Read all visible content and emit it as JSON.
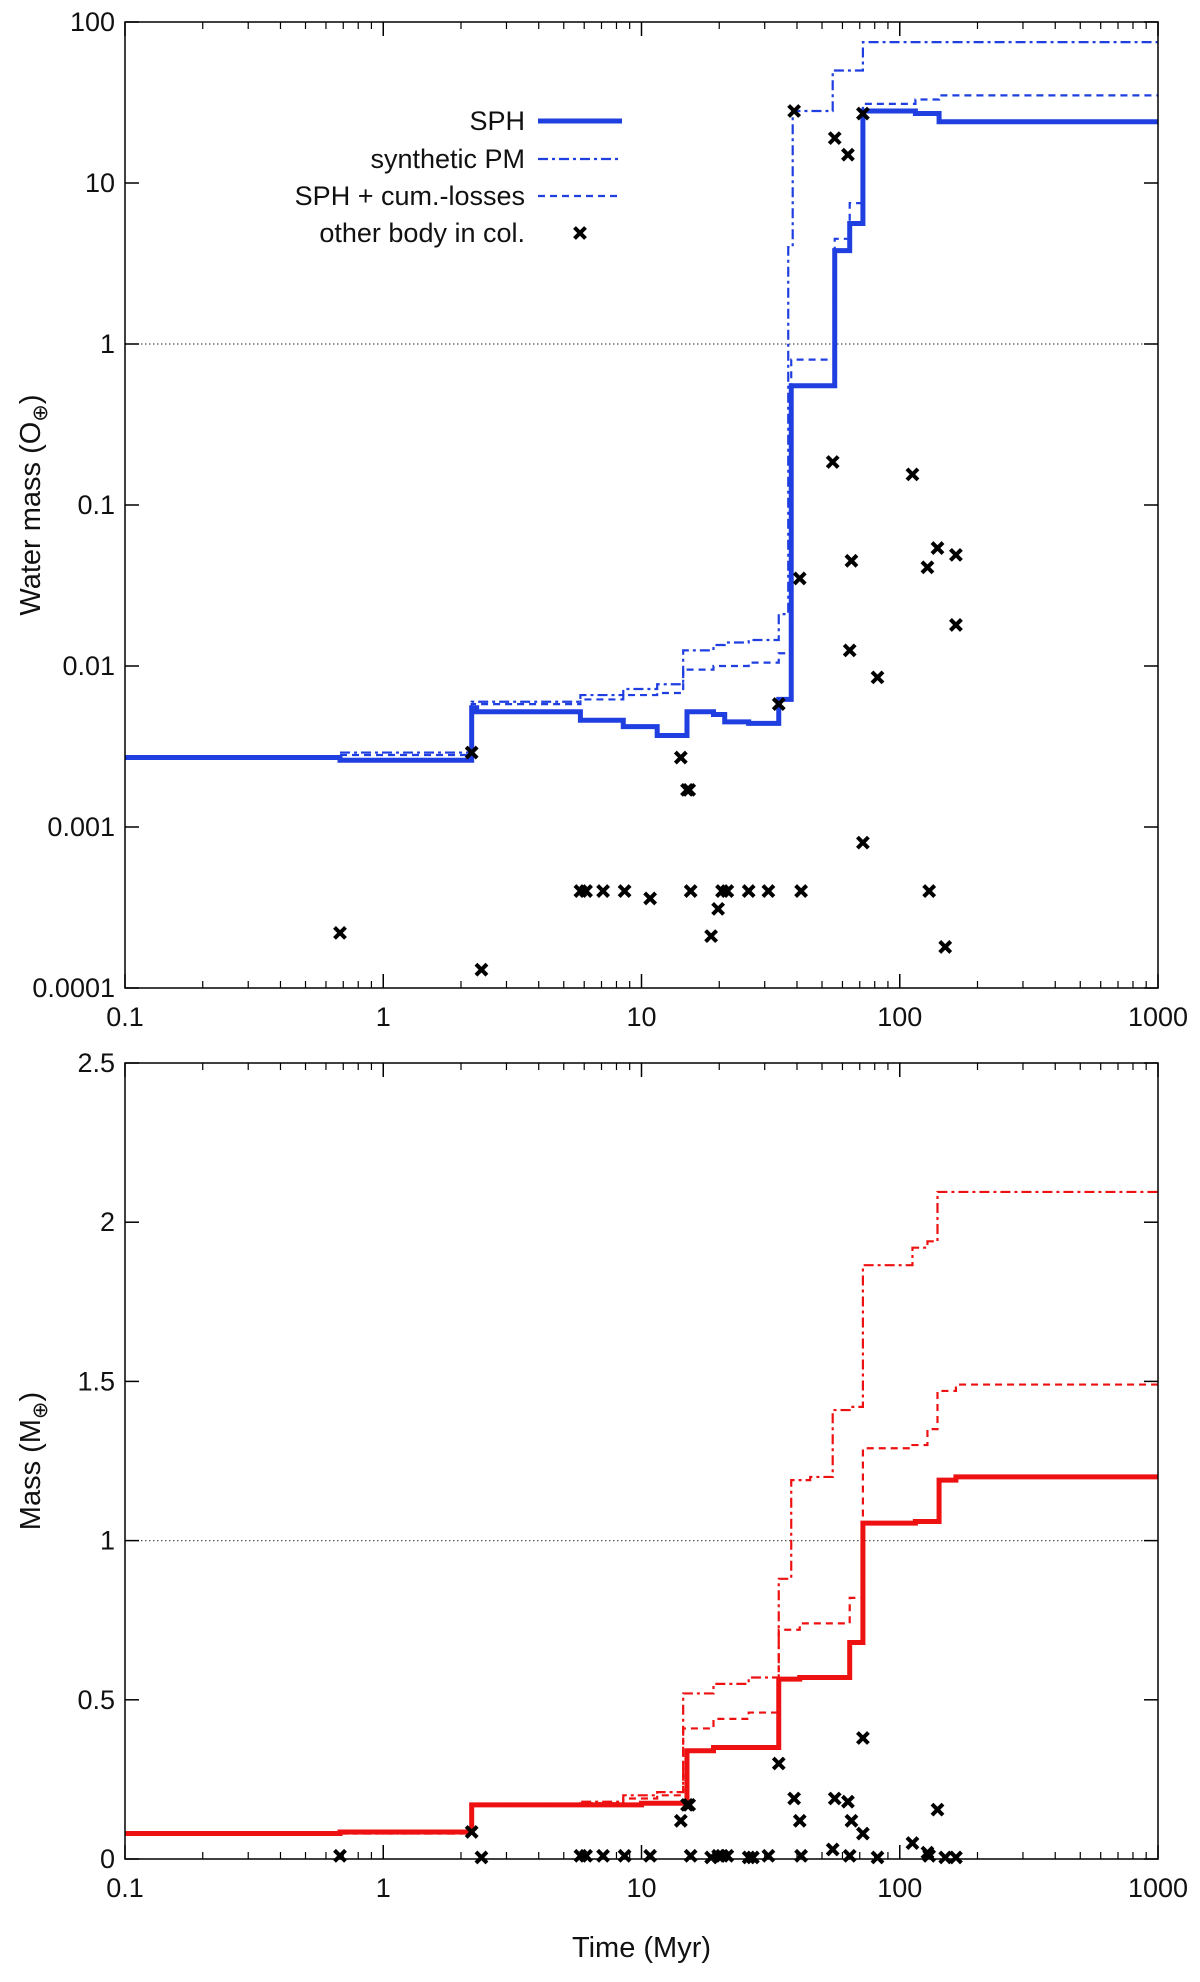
{
  "chart_data": [
    {
      "type": "line",
      "panel": "top",
      "ylabel": "Water mass (O",
      "ylabel_subscript": "⊕",
      "ylabel_close": ")",
      "xlabel": "",
      "x_scale": "log",
      "y_scale": "log",
      "xlim": [
        0.1,
        1000
      ],
      "ylim": [
        0.0001,
        100
      ],
      "xticks": [
        0.1,
        1,
        10,
        100,
        1000
      ],
      "xtick_labels": [
        "0.1",
        "1",
        "10",
        "100",
        "1000"
      ],
      "yticks": [
        0.0001,
        0.001,
        0.01,
        0.1,
        1,
        10,
        100
      ],
      "ytick_labels": [
        "0.0001",
        "0.001",
        "0.01",
        "0.1",
        "1",
        "10",
        "100"
      ],
      "reference_line": 1,
      "legend_position": "top-left",
      "colors": {
        "series": "#1f3fe0",
        "markers": "#000000",
        "reference": "#555555"
      },
      "legend": [
        "SPH",
        "synthetic PM",
        "SPH + cum.-losses",
        "other body in col."
      ],
      "series": [
        {
          "name": "SPH",
          "style": "solid-thick",
          "points": [
            [
              0.1,
              0.0027
            ],
            [
              0.68,
              0.0027
            ],
            [
              0.68,
              0.0026
            ],
            [
              2.2,
              0.0026
            ],
            [
              2.2,
              0.0055
            ],
            [
              2.3,
              0.0055
            ],
            [
              2.3,
              0.0052
            ],
            [
              5.8,
              0.0052
            ],
            [
              5.8,
              0.0046
            ],
            [
              8.5,
              0.0046
            ],
            [
              8.5,
              0.0042
            ],
            [
              11.5,
              0.0042
            ],
            [
              11.5,
              0.0037
            ],
            [
              15,
              0.0037
            ],
            [
              15,
              0.0052
            ],
            [
              19,
              0.0052
            ],
            [
              19,
              0.005
            ],
            [
              21,
              0.005
            ],
            [
              21,
              0.0045
            ],
            [
              26,
              0.0045
            ],
            [
              26,
              0.0044
            ],
            [
              34,
              0.0044
            ],
            [
              34,
              0.0062
            ],
            [
              38,
              0.0062
            ],
            [
              38,
              0.55
            ],
            [
              56,
              0.55
            ],
            [
              56,
              3.8
            ],
            [
              64,
              3.8
            ],
            [
              64,
              5.6
            ],
            [
              72,
              5.6
            ],
            [
              72,
              28
            ],
            [
              115,
              28
            ],
            [
              115,
              27
            ],
            [
              142,
              27
            ],
            [
              142,
              24
            ],
            [
              1000,
              24
            ]
          ]
        },
        {
          "name": "synthetic PM",
          "style": "dash-dot",
          "points": [
            [
              0.68,
              0.0029
            ],
            [
              2.2,
              0.0029
            ],
            [
              2.2,
              0.006
            ],
            [
              5.8,
              0.006
            ],
            [
              5.8,
              0.0066
            ],
            [
              8.5,
              0.0066
            ],
            [
              8.5,
              0.0072
            ],
            [
              11.5,
              0.0072
            ],
            [
              11.5,
              0.0077
            ],
            [
              14.5,
              0.0077
            ],
            [
              14.5,
              0.0125
            ],
            [
              19,
              0.0125
            ],
            [
              19,
              0.0135
            ],
            [
              21,
              0.0135
            ],
            [
              21,
              0.014
            ],
            [
              26,
              0.014
            ],
            [
              26,
              0.0145
            ],
            [
              34,
              0.0145
            ],
            [
              34,
              0.021
            ],
            [
              37,
              0.021
            ],
            [
              37,
              4
            ],
            [
              38.5,
              4
            ],
            [
              38.5,
              28
            ],
            [
              55,
              28
            ],
            [
              55,
              50
            ],
            [
              72,
              50
            ],
            [
              72,
              75
            ],
            [
              1000,
              75
            ]
          ]
        },
        {
          "name": "SPH + cum.-losses",
          "style": "dashed",
          "points": [
            [
              0.68,
              0.0028
            ],
            [
              2.2,
              0.0028
            ],
            [
              2.2,
              0.0058
            ],
            [
              5.8,
              0.0058
            ],
            [
              5.8,
              0.0062
            ],
            [
              8.5,
              0.0062
            ],
            [
              8.5,
              0.0066
            ],
            [
              11.5,
              0.0066
            ],
            [
              11.5,
              0.0068
            ],
            [
              14.5,
              0.0068
            ],
            [
              14.5,
              0.0095
            ],
            [
              19,
              0.0095
            ],
            [
              19,
              0.01
            ],
            [
              26,
              0.01
            ],
            [
              26,
              0.0105
            ],
            [
              34,
              0.0105
            ],
            [
              34,
              0.012
            ],
            [
              38,
              0.012
            ],
            [
              38,
              0.8
            ],
            [
              56,
              0.8
            ],
            [
              56,
              4.5
            ],
            [
              64,
              4.5
            ],
            [
              64,
              7.5
            ],
            [
              72,
              7.5
            ],
            [
              72,
              31
            ],
            [
              115,
              31
            ],
            [
              115,
              33
            ],
            [
              142,
              33
            ],
            [
              142,
              35
            ],
            [
              1000,
              35
            ]
          ]
        }
      ],
      "markers": {
        "name": "other body in col.",
        "points": [
          [
            0.68,
            0.00022
          ],
          [
            2.2,
            0.0029
          ],
          [
            2.4,
            0.00013
          ],
          [
            5.8,
            0.0004
          ],
          [
            6.1,
            0.0004
          ],
          [
            7.1,
            0.0004
          ],
          [
            8.6,
            0.0004
          ],
          [
            10.8,
            0.00036
          ],
          [
            14.2,
            0.0027
          ],
          [
            15.0,
            0.0017
          ],
          [
            15.3,
            0.0017
          ],
          [
            15.5,
            0.0004
          ],
          [
            18.6,
            0.00021
          ],
          [
            19.8,
            0.00031
          ],
          [
            20.5,
            0.0004
          ],
          [
            21.5,
            0.0004
          ],
          [
            26,
            0.0004
          ],
          [
            31,
            0.0004
          ],
          [
            34,
            0.0058
          ],
          [
            39,
            28
          ],
          [
            41,
            0.035
          ],
          [
            41.5,
            0.0004
          ],
          [
            55,
            0.185
          ],
          [
            56,
            19
          ],
          [
            63,
            15
          ],
          [
            65,
            0.045
          ],
          [
            64,
            0.0125
          ],
          [
            72,
            0.0008
          ],
          [
            72,
            27
          ],
          [
            82,
            0.0085
          ],
          [
            112,
            0.155
          ],
          [
            128,
            0.041
          ],
          [
            130,
            0.0004
          ],
          [
            140,
            0.054
          ],
          [
            150,
            0.00018
          ],
          [
            165,
            0.049
          ],
          [
            165,
            0.018
          ]
        ]
      }
    },
    {
      "type": "line",
      "panel": "bottom",
      "ylabel": "Mass (M",
      "ylabel_subscript": "⊕",
      "ylabel_close": ")",
      "xlabel": "Time (Myr)",
      "x_scale": "log",
      "y_scale": "linear",
      "xlim": [
        0.1,
        1000
      ],
      "ylim": [
        0,
        2.5
      ],
      "xticks": [
        0.1,
        1,
        10,
        100,
        1000
      ],
      "xtick_labels": [
        "0.1",
        "1",
        "10",
        "100",
        "1000"
      ],
      "yticks": [
        0,
        0.5,
        1,
        1.5,
        2,
        2.5
      ],
      "ytick_labels": [
        "0",
        "0.5",
        "1",
        "1.5",
        "2",
        "2.5"
      ],
      "reference_line": 1,
      "colors": {
        "series": "#ee1111",
        "markers": "#000000",
        "reference": "#555555"
      },
      "series": [
        {
          "name": "SPH",
          "style": "solid-thick",
          "points": [
            [
              0.1,
              0.08
            ],
            [
              0.68,
              0.08
            ],
            [
              0.68,
              0.085
            ],
            [
              2.2,
              0.085
            ],
            [
              2.2,
              0.17
            ],
            [
              10,
              0.17
            ],
            [
              10,
              0.175
            ],
            [
              15,
              0.175
            ],
            [
              15,
              0.34
            ],
            [
              19,
              0.34
            ],
            [
              19,
              0.35
            ],
            [
              34,
              0.35
            ],
            [
              34,
              0.565
            ],
            [
              41,
              0.565
            ],
            [
              41,
              0.57
            ],
            [
              64,
              0.57
            ],
            [
              64,
              0.68
            ],
            [
              72,
              0.68
            ],
            [
              72,
              1.055
            ],
            [
              115,
              1.055
            ],
            [
              115,
              1.06
            ],
            [
              142,
              1.06
            ],
            [
              142,
              1.19
            ],
            [
              165,
              1.19
            ],
            [
              165,
              1.2
            ],
            [
              1000,
              1.2
            ]
          ]
        },
        {
          "name": "synthetic PM",
          "style": "dash-dot",
          "points": [
            [
              0.68,
              0.08
            ],
            [
              2.2,
              0.08
            ],
            [
              2.2,
              0.17
            ],
            [
              5.8,
              0.17
            ],
            [
              5.8,
              0.18
            ],
            [
              8.5,
              0.18
            ],
            [
              8.5,
              0.2
            ],
            [
              11.5,
              0.2
            ],
            [
              11.5,
              0.21
            ],
            [
              14.5,
              0.21
            ],
            [
              14.5,
              0.52
            ],
            [
              19,
              0.52
            ],
            [
              19,
              0.55
            ],
            [
              26,
              0.55
            ],
            [
              26,
              0.57
            ],
            [
              34,
              0.57
            ],
            [
              34,
              0.88
            ],
            [
              38,
              0.88
            ],
            [
              38,
              1.19
            ],
            [
              45,
              1.19
            ],
            [
              45,
              1.2
            ],
            [
              55,
              1.2
            ],
            [
              55,
              1.41
            ],
            [
              64,
              1.41
            ],
            [
              64,
              1.42
            ],
            [
              72,
              1.42
            ],
            [
              72,
              1.865
            ],
            [
              112,
              1.865
            ],
            [
              112,
              1.92
            ],
            [
              128,
              1.92
            ],
            [
              128,
              1.94
            ],
            [
              140,
              1.94
            ],
            [
              140,
              2.095
            ],
            [
              1000,
              2.095
            ]
          ]
        },
        {
          "name": "SPH + cum.-losses",
          "style": "dashed",
          "points": [
            [
              0.68,
              0.08
            ],
            [
              2.2,
              0.08
            ],
            [
              2.2,
              0.17
            ],
            [
              5.8,
              0.17
            ],
            [
              5.8,
              0.175
            ],
            [
              8.5,
              0.175
            ],
            [
              8.5,
              0.19
            ],
            [
              11.5,
              0.19
            ],
            [
              11.5,
              0.2
            ],
            [
              14.5,
              0.2
            ],
            [
              14.5,
              0.41
            ],
            [
              19,
              0.41
            ],
            [
              19,
              0.44
            ],
            [
              26,
              0.44
            ],
            [
              26,
              0.46
            ],
            [
              34,
              0.46
            ],
            [
              34,
              0.72
            ],
            [
              41,
              0.72
            ],
            [
              41,
              0.74
            ],
            [
              64,
              0.74
            ],
            [
              64,
              0.82
            ],
            [
              72,
              0.82
            ],
            [
              72,
              1.29
            ],
            [
              112,
              1.29
            ],
            [
              112,
              1.3
            ],
            [
              128,
              1.3
            ],
            [
              128,
              1.35
            ],
            [
              140,
              1.35
            ],
            [
              140,
              1.47
            ],
            [
              165,
              1.47
            ],
            [
              165,
              1.49
            ],
            [
              1000,
              1.49
            ]
          ]
        }
      ],
      "markers": {
        "name": "other body in col.",
        "points": [
          [
            0.68,
            0.01
          ],
          [
            2.2,
            0.085
          ],
          [
            2.4,
            0.005
          ],
          [
            5.8,
            0.01
          ],
          [
            6.1,
            0.01
          ],
          [
            7.1,
            0.01
          ],
          [
            8.6,
            0.01
          ],
          [
            10.8,
            0.01
          ],
          [
            14.2,
            0.12
          ],
          [
            15.0,
            0.17
          ],
          [
            15.3,
            0.17
          ],
          [
            15.5,
            0.01
          ],
          [
            18.6,
            0.005
          ],
          [
            19.8,
            0.01
          ],
          [
            20.5,
            0.01
          ],
          [
            21.5,
            0.01
          ],
          [
            26,
            0.005
          ],
          [
            27,
            0.005
          ],
          [
            31,
            0.01
          ],
          [
            34,
            0.3
          ],
          [
            39,
            0.19
          ],
          [
            41,
            0.12
          ],
          [
            41.5,
            0.01
          ],
          [
            55,
            0.03
          ],
          [
            56,
            0.19
          ],
          [
            63,
            0.18
          ],
          [
            65,
            0.12
          ],
          [
            64,
            0.01
          ],
          [
            72,
            0.08
          ],
          [
            72,
            0.38
          ],
          [
            82,
            0.005
          ],
          [
            112,
            0.05
          ],
          [
            128,
            0.02
          ],
          [
            130,
            0.01
          ],
          [
            140,
            0.155
          ],
          [
            150,
            0.005
          ],
          [
            165,
            0.005
          ]
        ]
      }
    }
  ]
}
